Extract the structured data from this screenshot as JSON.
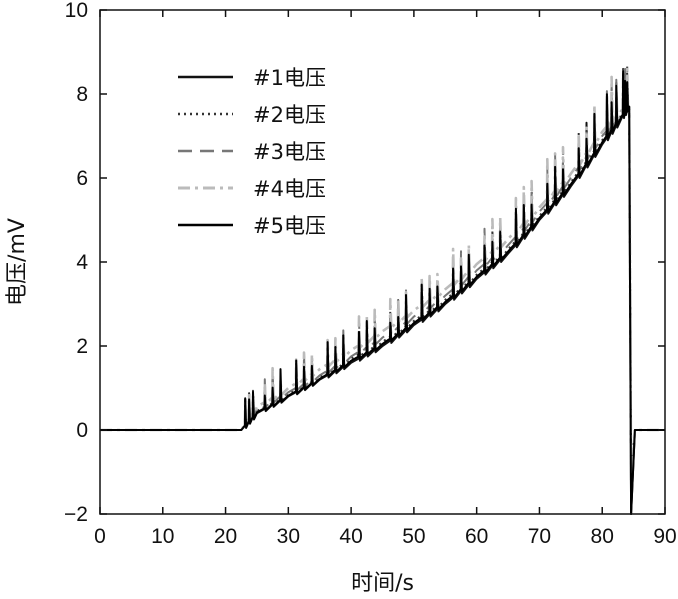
{
  "chart_data": {
    "type": "line",
    "xlabel": "时间/s",
    "ylabel": "电压/mV",
    "xlim": [
      0,
      90
    ],
    "ylim": [
      -2,
      10
    ],
    "xticks": [
      0,
      10,
      20,
      30,
      40,
      50,
      60,
      70,
      80,
      90
    ],
    "yticks": [
      -2,
      0,
      2,
      4,
      6,
      8,
      10
    ],
    "grid": false,
    "legend_position": "top-left",
    "onset_time": 22.5,
    "drop_time": 84.5,
    "series": [
      {
        "name": "#1电压",
        "color": "#111111",
        "dash": "solid",
        "x": [
          0,
          22.5,
          25,
          30,
          35,
          40,
          45,
          50,
          55,
          60,
          65,
          70,
          75,
          80,
          83,
          84.3,
          84.6,
          85.2,
          90
        ],
        "y": [
          0,
          0,
          0.4,
          0.8,
          1.2,
          1.6,
          2.0,
          2.5,
          3.0,
          3.6,
          4.2,
          5.0,
          5.8,
          6.8,
          7.4,
          7.7,
          -2.0,
          0,
          0
        ]
      },
      {
        "name": "#2电压",
        "color": "#333333",
        "dash": "dotted",
        "x": [
          0,
          22.5,
          25,
          30,
          35,
          40,
          45,
          50,
          55,
          60,
          65,
          70,
          75,
          80,
          83,
          84.3,
          84.6,
          85.2,
          90
        ],
        "y": [
          0,
          0,
          0.45,
          0.85,
          1.25,
          1.7,
          2.1,
          2.6,
          3.1,
          3.7,
          4.3,
          5.1,
          5.9,
          6.9,
          7.5,
          7.7,
          -1.0,
          0,
          0
        ]
      },
      {
        "name": "#3电压",
        "color": "#777777",
        "dash": "dashed",
        "x": [
          0,
          22.5,
          25,
          30,
          35,
          40,
          45,
          50,
          55,
          60,
          65,
          70,
          75,
          80,
          83,
          84.3,
          84.6,
          85.2,
          90
        ],
        "y": [
          0,
          0,
          0.5,
          0.9,
          1.3,
          1.75,
          2.2,
          2.7,
          3.2,
          3.8,
          4.4,
          5.2,
          6.0,
          7.0,
          7.5,
          7.7,
          -1.5,
          0,
          0
        ]
      },
      {
        "name": "#4电压",
        "color": "#bbbbbb",
        "dash": "dash-dot",
        "x": [
          0,
          22.5,
          25,
          30,
          35,
          40,
          45,
          50,
          55,
          60,
          65,
          70,
          75,
          80,
          83,
          84.3,
          84.6,
          85.2,
          90
        ],
        "y": [
          0,
          0,
          0.55,
          1.0,
          1.45,
          1.9,
          2.35,
          2.85,
          3.35,
          3.95,
          4.55,
          5.3,
          6.1,
          7.1,
          7.6,
          7.7,
          -1.2,
          0,
          0
        ]
      },
      {
        "name": "#5电压",
        "color": "#000000",
        "dash": "solid",
        "x": [
          0,
          22.5,
          25,
          30,
          35,
          40,
          45,
          50,
          55,
          60,
          65,
          70,
          75,
          80,
          83,
          84.3,
          84.6,
          85.2,
          90
        ],
        "y": [
          0,
          0,
          0.42,
          0.82,
          1.22,
          1.65,
          2.05,
          2.55,
          3.05,
          3.65,
          4.25,
          5.05,
          5.85,
          6.85,
          7.45,
          7.7,
          -2.0,
          0,
          0
        ]
      }
    ]
  }
}
